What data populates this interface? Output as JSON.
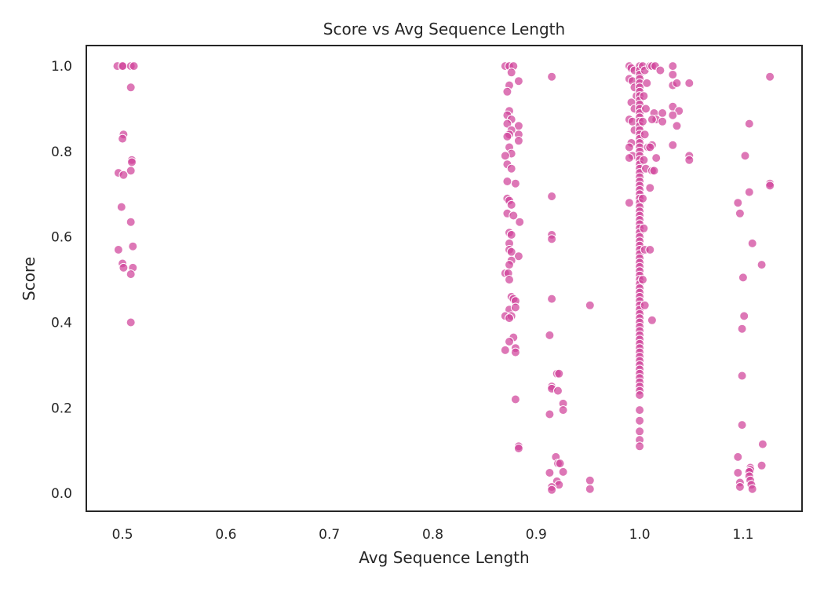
{
  "chart_data": {
    "type": "scatter",
    "title": "Score vs Avg Sequence Length",
    "xlabel": "Avg Sequence Length",
    "ylabel": "Score",
    "xlim": [
      0.465,
      1.157
    ],
    "ylim": [
      -0.042,
      1.048
    ],
    "xticks": [
      0.5,
      0.6,
      0.7,
      0.8,
      0.9,
      1.0,
      1.1
    ],
    "xtick_labels": [
      "0.5",
      "0.6",
      "0.7",
      "0.8",
      "0.9",
      "1.0",
      "1.1"
    ],
    "yticks": [
      0.0,
      0.2,
      0.4,
      0.6,
      0.8,
      1.0
    ],
    "ytick_labels": [
      "0.0",
      "0.2",
      "0.4",
      "0.6",
      "0.8",
      "1.0"
    ],
    "grid": false,
    "point_color": "#d0429a",
    "series": [
      {
        "points": [
          [
            0.495,
            1.0
          ],
          [
            0.501,
            1.0
          ],
          [
            0.508,
            1.0
          ],
          [
            0.511,
            1.0
          ],
          [
            0.5,
            1.0
          ],
          [
            0.508,
            0.95
          ],
          [
            0.501,
            0.84
          ],
          [
            0.5,
            0.83
          ],
          [
            0.509,
            0.78
          ],
          [
            0.509,
            0.775
          ],
          [
            0.508,
            0.755
          ],
          [
            0.496,
            0.75
          ],
          [
            0.501,
            0.745
          ],
          [
            0.499,
            0.67
          ],
          [
            0.508,
            0.635
          ],
          [
            0.51,
            0.578
          ],
          [
            0.496,
            0.57
          ],
          [
            0.5,
            0.538
          ],
          [
            0.501,
            0.528
          ],
          [
            0.51,
            0.528
          ],
          [
            0.508,
            0.513
          ],
          [
            0.508,
            0.4
          ],
          [
            0.87,
            1.0
          ],
          [
            0.874,
            1.0
          ],
          [
            0.878,
            1.0
          ],
          [
            0.876,
            0.985
          ],
          [
            0.883,
            0.965
          ],
          [
            0.874,
            0.955
          ],
          [
            0.872,
            0.94
          ],
          [
            0.874,
            0.895
          ],
          [
            0.872,
            0.885
          ],
          [
            0.876,
            0.875
          ],
          [
            0.872,
            0.865
          ],
          [
            0.883,
            0.86
          ],
          [
            0.876,
            0.85
          ],
          [
            0.874,
            0.84
          ],
          [
            0.883,
            0.84
          ],
          [
            0.872,
            0.835
          ],
          [
            0.883,
            0.825
          ],
          [
            0.874,
            0.81
          ],
          [
            0.876,
            0.795
          ],
          [
            0.87,
            0.79
          ],
          [
            0.872,
            0.77
          ],
          [
            0.876,
            0.76
          ],
          [
            0.872,
            0.73
          ],
          [
            0.88,
            0.725
          ],
          [
            0.872,
            0.69
          ],
          [
            0.874,
            0.685
          ],
          [
            0.876,
            0.675
          ],
          [
            0.872,
            0.655
          ],
          [
            0.878,
            0.65
          ],
          [
            0.884,
            0.635
          ],
          [
            0.874,
            0.61
          ],
          [
            0.876,
            0.605
          ],
          [
            0.874,
            0.585
          ],
          [
            0.874,
            0.57
          ],
          [
            0.876,
            0.565
          ],
          [
            0.883,
            0.555
          ],
          [
            0.876,
            0.545
          ],
          [
            0.874,
            0.535
          ],
          [
            0.87,
            0.515
          ],
          [
            0.873,
            0.515
          ],
          [
            0.874,
            0.5
          ],
          [
            0.876,
            0.46
          ],
          [
            0.878,
            0.455
          ],
          [
            0.88,
            0.45
          ],
          [
            0.874,
            0.43
          ],
          [
            0.88,
            0.435
          ],
          [
            0.87,
            0.415
          ],
          [
            0.876,
            0.415
          ],
          [
            0.874,
            0.41
          ],
          [
            0.878,
            0.365
          ],
          [
            0.874,
            0.355
          ],
          [
            0.88,
            0.34
          ],
          [
            0.87,
            0.335
          ],
          [
            0.88,
            0.33
          ],
          [
            0.88,
            0.22
          ],
          [
            0.883,
            0.11
          ],
          [
            0.883,
            0.105
          ],
          [
            0.915,
            0.975
          ],
          [
            0.915,
            0.695
          ],
          [
            0.915,
            0.605
          ],
          [
            0.915,
            0.595
          ],
          [
            0.915,
            0.455
          ],
          [
            0.913,
            0.37
          ],
          [
            0.92,
            0.28
          ],
          [
            0.922,
            0.28
          ],
          [
            0.915,
            0.25
          ],
          [
            0.915,
            0.245
          ],
          [
            0.921,
            0.24
          ],
          [
            0.926,
            0.21
          ],
          [
            0.926,
            0.195
          ],
          [
            0.913,
            0.185
          ],
          [
            0.919,
            0.085
          ],
          [
            0.921,
            0.07
          ],
          [
            0.923,
            0.07
          ],
          [
            0.926,
            0.05
          ],
          [
            0.913,
            0.048
          ],
          [
            0.92,
            0.028
          ],
          [
            0.922,
            0.02
          ],
          [
            0.915,
            0.015
          ],
          [
            0.915,
            0.008
          ],
          [
            0.952,
            0.44
          ],
          [
            0.952,
            0.03
          ],
          [
            0.952,
            0.01
          ],
          [
            0.99,
            1.0
          ],
          [
            0.992,
            0.995
          ],
          [
            0.995,
            0.99
          ],
          [
            0.99,
            0.97
          ],
          [
            0.993,
            0.965
          ],
          [
            0.995,
            0.95
          ],
          [
            0.997,
            0.93
          ],
          [
            0.992,
            0.915
          ],
          [
            0.995,
            0.9
          ],
          [
            0.99,
            0.875
          ],
          [
            0.993,
            0.87
          ],
          [
            0.995,
            0.85
          ],
          [
            0.992,
            0.82
          ],
          [
            0.99,
            0.81
          ],
          [
            0.993,
            0.79
          ],
          [
            0.99,
            0.785
          ],
          [
            0.99,
            0.68
          ],
          [
            1.0,
            1.0
          ],
          [
            1.0,
            0.99
          ],
          [
            1.0,
            0.98
          ],
          [
            1.0,
            0.97
          ],
          [
            1.0,
            0.96
          ],
          [
            1.0,
            0.95
          ],
          [
            1.0,
            0.94
          ],
          [
            1.0,
            0.93
          ],
          [
            1.0,
            0.92
          ],
          [
            1.0,
            0.91
          ],
          [
            1.0,
            0.9
          ],
          [
            1.0,
            0.89
          ],
          [
            1.0,
            0.88
          ],
          [
            1.0,
            0.87
          ],
          [
            1.0,
            0.86
          ],
          [
            1.0,
            0.85
          ],
          [
            1.0,
            0.84
          ],
          [
            1.0,
            0.83
          ],
          [
            1.0,
            0.82
          ],
          [
            1.0,
            0.81
          ],
          [
            1.0,
            0.8
          ],
          [
            1.0,
            0.79
          ],
          [
            1.0,
            0.78
          ],
          [
            1.0,
            0.77
          ],
          [
            1.0,
            0.76
          ],
          [
            1.0,
            0.75
          ],
          [
            1.0,
            0.74
          ],
          [
            1.0,
            0.73
          ],
          [
            1.0,
            0.72
          ],
          [
            1.0,
            0.71
          ],
          [
            1.0,
            0.7
          ],
          [
            1.0,
            0.69
          ],
          [
            1.0,
            0.68
          ],
          [
            1.0,
            0.67
          ],
          [
            1.0,
            0.66
          ],
          [
            1.0,
            0.65
          ],
          [
            1.0,
            0.64
          ],
          [
            1.0,
            0.63
          ],
          [
            1.0,
            0.62
          ],
          [
            1.0,
            0.61
          ],
          [
            1.0,
            0.6
          ],
          [
            1.0,
            0.59
          ],
          [
            1.0,
            0.58
          ],
          [
            1.0,
            0.57
          ],
          [
            1.0,
            0.56
          ],
          [
            1.0,
            0.55
          ],
          [
            1.0,
            0.54
          ],
          [
            1.0,
            0.53
          ],
          [
            1.0,
            0.52
          ],
          [
            1.0,
            0.51
          ],
          [
            1.0,
            0.5
          ],
          [
            1.0,
            0.49
          ],
          [
            1.0,
            0.48
          ],
          [
            1.0,
            0.47
          ],
          [
            1.0,
            0.46
          ],
          [
            1.0,
            0.45
          ],
          [
            1.0,
            0.44
          ],
          [
            1.0,
            0.43
          ],
          [
            1.0,
            0.42
          ],
          [
            1.0,
            0.41
          ],
          [
            1.0,
            0.4
          ],
          [
            1.0,
            0.39
          ],
          [
            1.0,
            0.38
          ],
          [
            1.0,
            0.37
          ],
          [
            1.0,
            0.36
          ],
          [
            1.0,
            0.35
          ],
          [
            1.0,
            0.34
          ],
          [
            1.0,
            0.33
          ],
          [
            1.0,
            0.32
          ],
          [
            1.0,
            0.31
          ],
          [
            1.0,
            0.3
          ],
          [
            1.0,
            0.29
          ],
          [
            1.0,
            0.28
          ],
          [
            1.0,
            0.27
          ],
          [
            1.0,
            0.26
          ],
          [
            1.0,
            0.25
          ],
          [
            1.0,
            0.24
          ],
          [
            1.0,
            0.23
          ],
          [
            1.0,
            0.195
          ],
          [
            1.0,
            0.17
          ],
          [
            1.0,
            0.145
          ],
          [
            1.0,
            0.125
          ],
          [
            1.0,
            0.11
          ],
          [
            1.003,
            1.0
          ],
          [
            1.005,
            0.99
          ],
          [
            1.007,
            0.96
          ],
          [
            1.004,
            0.93
          ],
          [
            1.006,
            0.9
          ],
          [
            1.003,
            0.87
          ],
          [
            1.005,
            0.84
          ],
          [
            1.008,
            0.81
          ],
          [
            1.004,
            0.78
          ],
          [
            1.006,
            0.76
          ],
          [
            1.003,
            0.69
          ],
          [
            1.004,
            0.62
          ],
          [
            1.005,
            0.57
          ],
          [
            1.003,
            0.5
          ],
          [
            1.005,
            0.44
          ],
          [
            1.01,
            1.0
          ],
          [
            1.012,
            1.0
          ],
          [
            1.015,
            1.0
          ],
          [
            1.02,
            0.99
          ],
          [
            1.014,
            0.89
          ],
          [
            1.016,
            0.875
          ],
          [
            1.012,
            0.875
          ],
          [
            1.022,
            0.89
          ],
          [
            1.012,
            0.815
          ],
          [
            1.01,
            0.81
          ],
          [
            1.016,
            0.785
          ],
          [
            1.012,
            0.755
          ],
          [
            1.014,
            0.755
          ],
          [
            1.01,
            0.715
          ],
          [
            1.01,
            0.57
          ],
          [
            1.012,
            0.405
          ],
          [
            1.022,
            0.87
          ],
          [
            1.032,
            1.0
          ],
          [
            1.032,
            0.98
          ],
          [
            1.032,
            0.955
          ],
          [
            1.036,
            0.96
          ],
          [
            1.032,
            0.905
          ],
          [
            1.038,
            0.895
          ],
          [
            1.032,
            0.885
          ],
          [
            1.036,
            0.86
          ],
          [
            1.032,
            0.815
          ],
          [
            1.048,
            0.96
          ],
          [
            1.048,
            0.79
          ],
          [
            1.048,
            0.78
          ],
          [
            1.095,
            0.68
          ],
          [
            1.097,
            0.655
          ],
          [
            1.102,
            0.79
          ],
          [
            1.1,
            0.505
          ],
          [
            1.101,
            0.415
          ],
          [
            1.099,
            0.385
          ],
          [
            1.099,
            0.275
          ],
          [
            1.099,
            0.16
          ],
          [
            1.095,
            0.085
          ],
          [
            1.095,
            0.048
          ],
          [
            1.097,
            0.025
          ],
          [
            1.097,
            0.015
          ],
          [
            1.106,
            0.865
          ],
          [
            1.106,
            0.705
          ],
          [
            1.109,
            0.585
          ],
          [
            1.107,
            0.06
          ],
          [
            1.107,
            0.055
          ],
          [
            1.106,
            0.05
          ],
          [
            1.106,
            0.04
          ],
          [
            1.107,
            0.03
          ],
          [
            1.108,
            0.02
          ],
          [
            1.109,
            0.01
          ],
          [
            1.118,
            0.535
          ],
          [
            1.119,
            0.115
          ],
          [
            1.118,
            0.065
          ],
          [
            1.126,
            0.975
          ],
          [
            1.126,
            0.725
          ],
          [
            1.126,
            0.72
          ]
        ]
      }
    ]
  }
}
